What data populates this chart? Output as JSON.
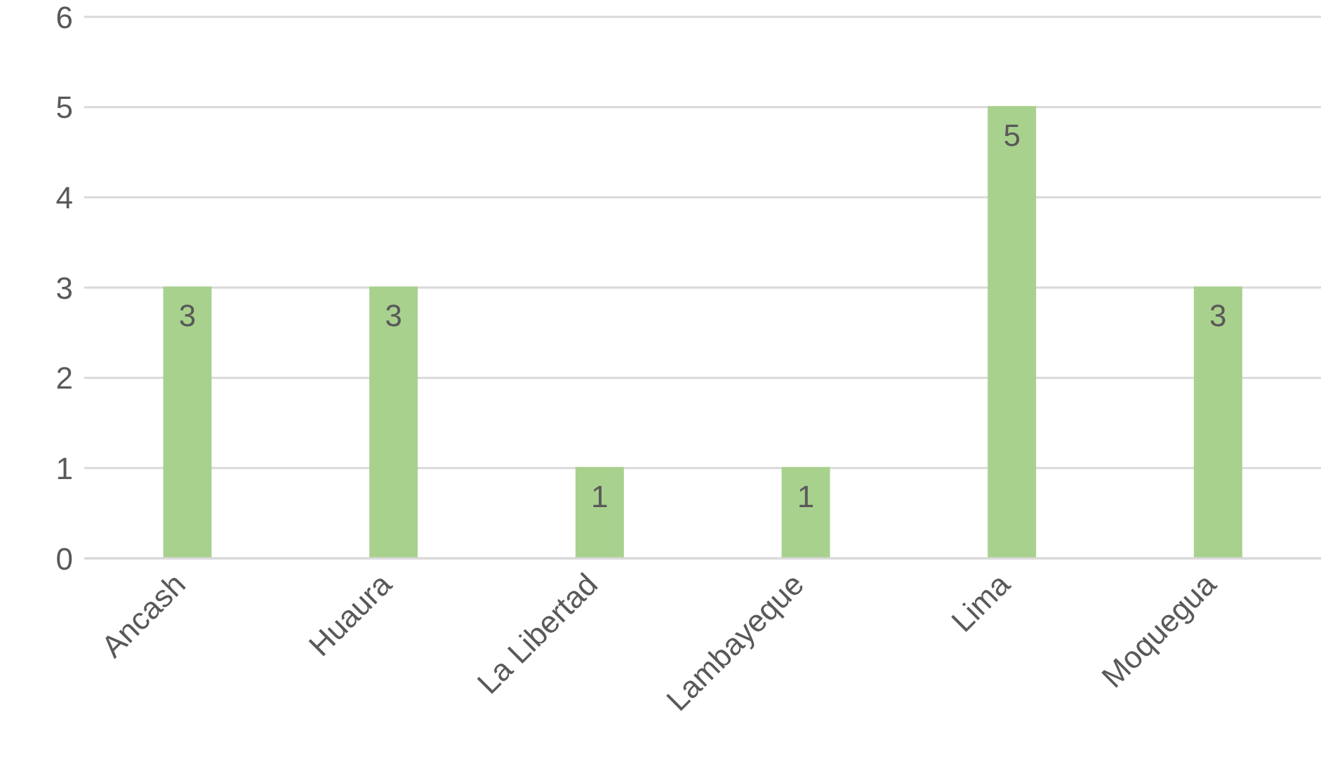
{
  "chart_data": {
    "type": "bar",
    "categories": [
      "Ancash",
      "Huaura",
      "La Libertad",
      "Lambayeque",
      "Lima",
      "Moquegua"
    ],
    "values": [
      3,
      3,
      1,
      1,
      5,
      3
    ],
    "color": "#a9d18e",
    "ylim": [
      0,
      6
    ],
    "yticks": [
      0,
      1,
      2,
      3,
      4,
      5,
      6
    ],
    "grid": "y",
    "data_labels": true
  }
}
